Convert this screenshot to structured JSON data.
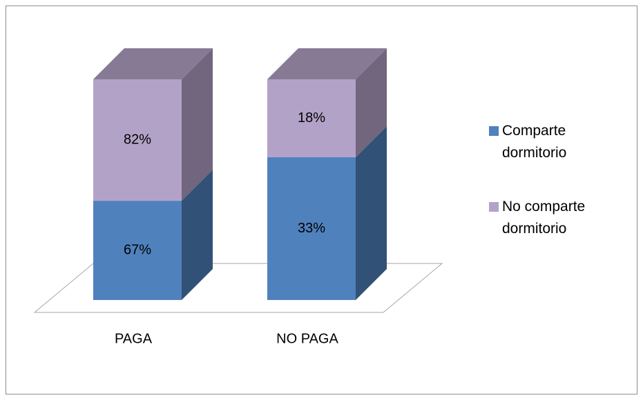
{
  "chart_data": {
    "type": "bar3d_stacked_percent",
    "categories": [
      "PAGA",
      "NO PAGA"
    ],
    "series": [
      {
        "name": "Comparte dormitorio",
        "color": "#4f81bd",
        "values": [
          67,
          33
        ]
      },
      {
        "name": "No comparte dormitorio",
        "color": "#b3a2c7",
        "values": [
          82,
          18
        ]
      }
    ],
    "value_labels": [
      [
        "67%",
        "33%"
      ],
      [
        "82%",
        "18%"
      ]
    ],
    "legend": "right"
  }
}
